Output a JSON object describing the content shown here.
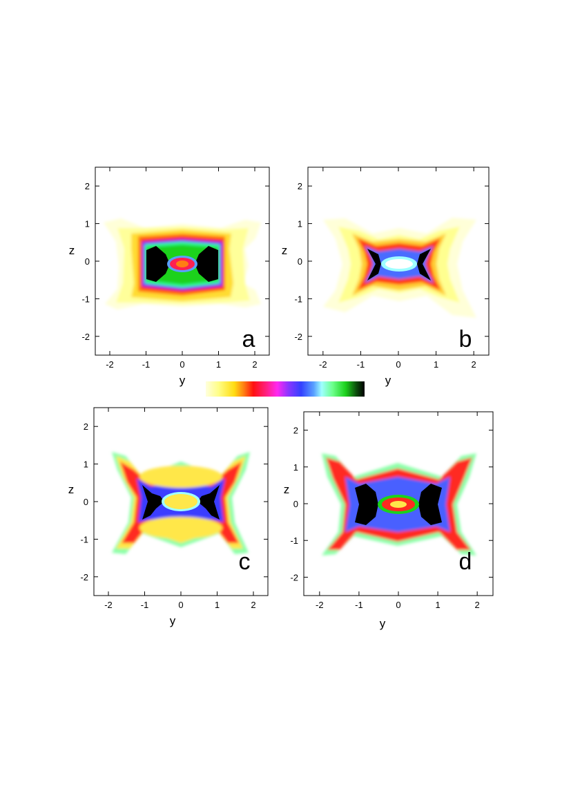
{
  "figure": {
    "colorbar": {
      "colors": [
        "#ffffdd",
        "#fffe88",
        "#ffdc12",
        "#ff7e12",
        "#ff1010",
        "#ff207f",
        "#ff28f0",
        "#8b35ff",
        "#3340ff",
        "#5aa0ff",
        "#9fffff",
        "#6cff8a",
        "#1cd21c",
        "#0c4a0c",
        "#000000"
      ]
    },
    "panels": [
      {
        "id": "a",
        "letter": "a",
        "xlabel": "y",
        "ylabel": "z",
        "x_ticks": [
          "-2",
          "-1",
          "0",
          "1",
          "2"
        ],
        "y_ticks": [
          "2",
          "1",
          "0",
          "-1",
          "-2"
        ],
        "xlim": [
          -2.4,
          2.4
        ],
        "ylim": [
          -2.5,
          2.5
        ]
      },
      {
        "id": "b",
        "letter": "b",
        "xlabel": "y",
        "ylabel": "z",
        "x_ticks": [
          "-2",
          "-1",
          "0",
          "1",
          "2"
        ],
        "y_ticks": [
          "2",
          "1",
          "0",
          "-1",
          "-2"
        ],
        "xlim": [
          -2.4,
          2.4
        ],
        "ylim": [
          -2.5,
          2.5
        ]
      },
      {
        "id": "c",
        "letter": "c",
        "xlabel": "y",
        "ylabel": "z",
        "x_ticks": [
          "-2",
          "-1",
          "0",
          "1",
          "2"
        ],
        "y_ticks": [
          "2",
          "1",
          "0",
          "-1",
          "-2"
        ],
        "xlim": [
          -2.4,
          2.4
        ],
        "ylim": [
          -2.5,
          2.5
        ]
      },
      {
        "id": "d",
        "letter": "d",
        "xlabel": "y",
        "ylabel": "z",
        "x_ticks": [
          "-2",
          "-1",
          "0",
          "1",
          "2"
        ],
        "y_ticks": [
          "2",
          "1",
          "0",
          "-1",
          "-2"
        ],
        "xlim": [
          -2.4,
          2.4
        ],
        "ylim": [
          -2.5,
          2.5
        ]
      }
    ]
  }
}
